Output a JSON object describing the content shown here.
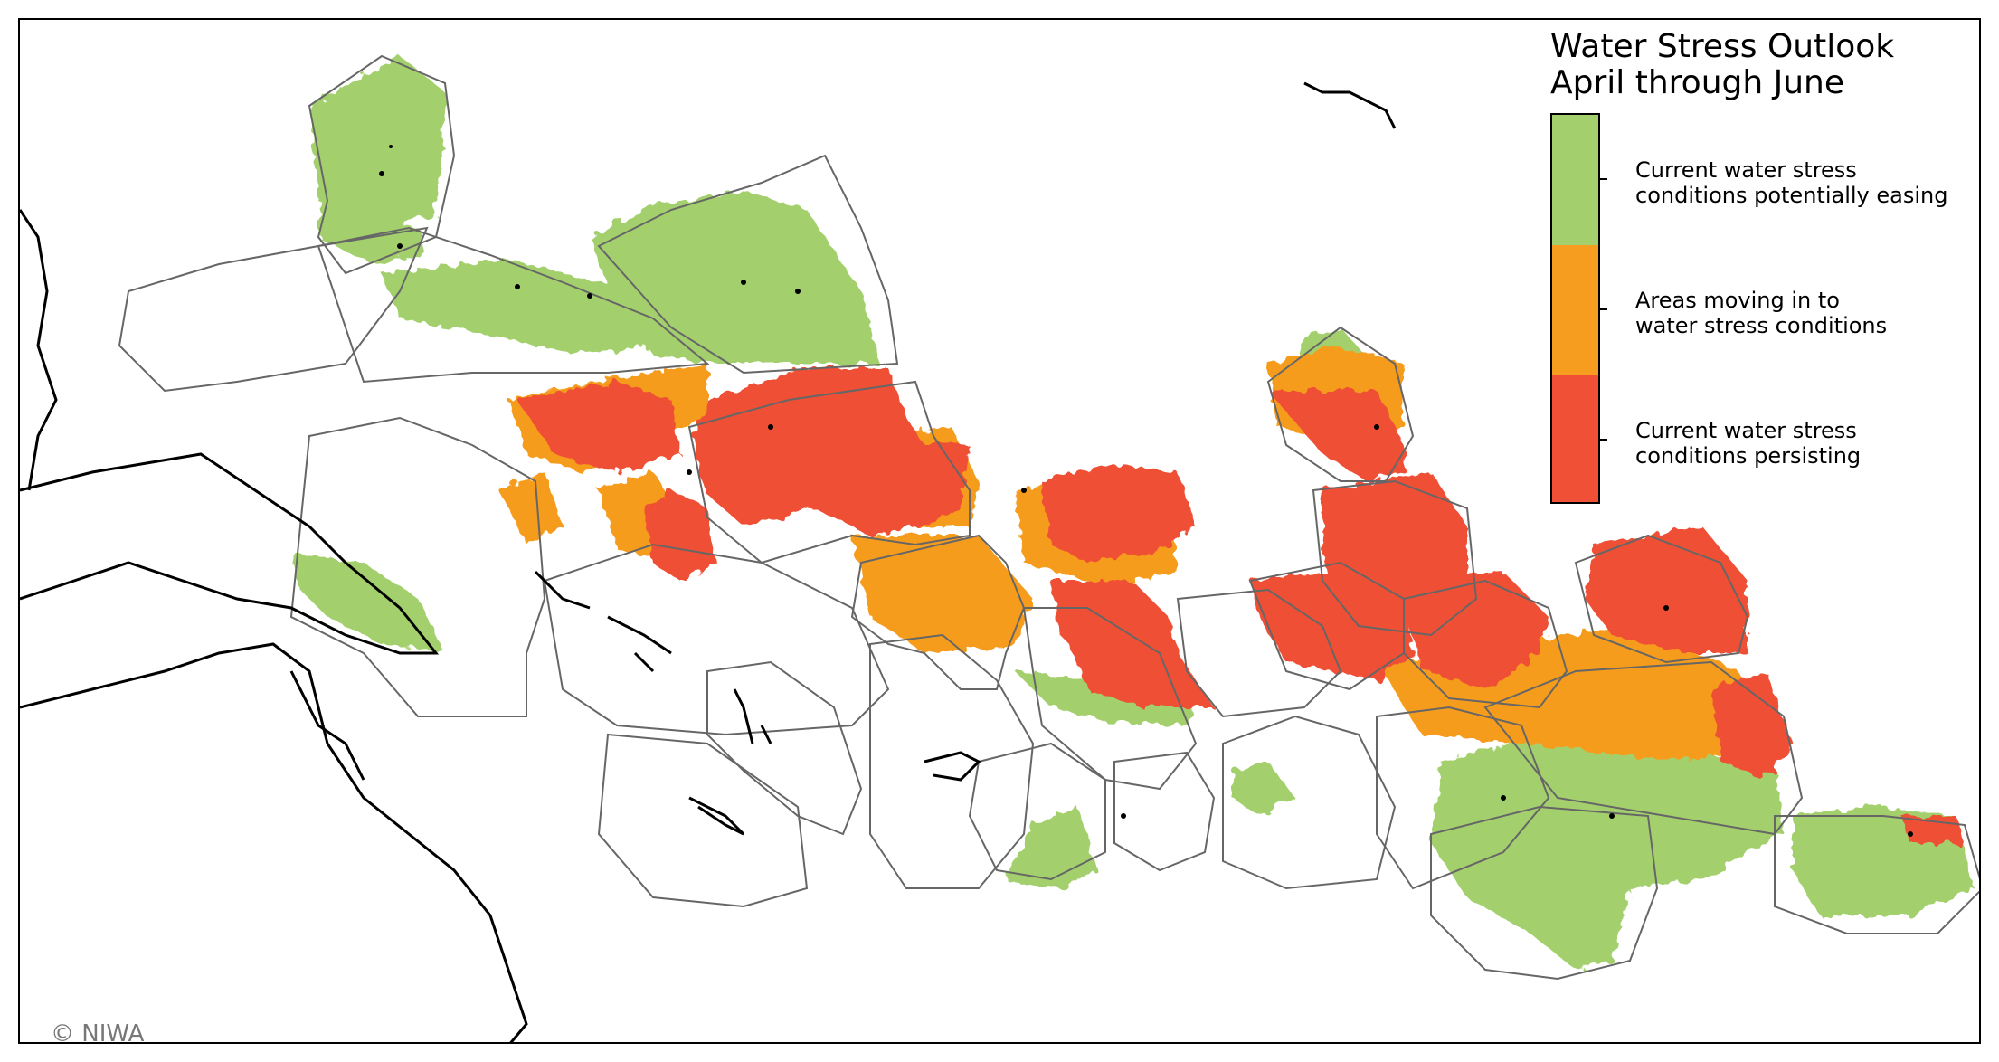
{
  "legend": {
    "title": "Water Stress Outlook\nApril through June",
    "items": [
      {
        "label": "Current water stress\nconditions potentially easing",
        "color": "#a3d06d",
        "icon": "easing-swatch"
      },
      {
        "label": "Areas moving in to\nwater stress conditions",
        "color": "#f69c1f",
        "icon": "moving-in-swatch"
      },
      {
        "label": "Current water stress\nconditions persisting",
        "color": "#ef5036",
        "icon": "persisting-swatch"
      }
    ]
  },
  "copyright": "© NIWA",
  "colors": {
    "easing": "#a3d06d",
    "moving_in": "#f69c1f",
    "persisting": "#ef5036",
    "zone_border": "#666666",
    "land": "#000000",
    "background": "#ffffff"
  }
}
